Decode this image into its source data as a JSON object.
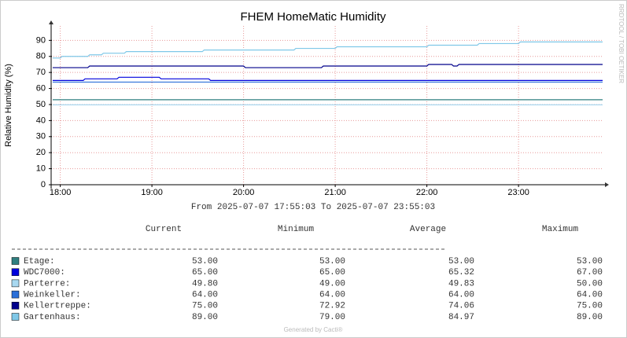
{
  "chart_data": {
    "type": "line",
    "title": "FHEM HomeMatic Humidity",
    "y_label": "Relative Humidity (%)",
    "range_label": "From 2025-07-07 17:55:03 To 2025-07-07 23:55:03",
    "xlim": [
      17.9175,
      23.9175
    ],
    "xticks": [
      {
        "value": 18,
        "label": "18:00"
      },
      {
        "value": 19,
        "label": "19:00"
      },
      {
        "value": 20,
        "label": "20:00"
      },
      {
        "value": 21,
        "label": "21:00"
      },
      {
        "value": 22,
        "label": "22:00"
      },
      {
        "value": 23,
        "label": "23:00"
      }
    ],
    "ylim": [
      0,
      99
    ],
    "yticks": [
      0,
      10,
      20,
      30,
      40,
      50,
      60,
      70,
      80,
      90
    ],
    "grid": true,
    "series": [
      {
        "name": "Etage:",
        "color": "#2f7f80",
        "x": [
          17.9175,
          23.9175
        ],
        "values": [
          53,
          53
        ]
      },
      {
        "name": "WDC7000:",
        "color": "#0000dd",
        "x": [
          17.9175,
          18.25,
          18.27,
          18.62,
          18.64,
          19.08,
          19.1,
          19.62,
          19.64,
          23.9175
        ],
        "values": [
          65,
          65,
          66,
          66,
          67,
          67,
          66,
          66,
          65,
          65
        ]
      },
      {
        "name": "Parterre:",
        "color": "#a8d8f0",
        "x": [
          17.9175,
          23.9175
        ],
        "values": [
          49.8,
          49.8
        ]
      },
      {
        "name": "Weinkeller:",
        "color": "#2b6fd8",
        "x": [
          17.9175,
          23.9175
        ],
        "values": [
          64,
          64
        ]
      },
      {
        "name": "Kellertreppe:",
        "color": "#00008b",
        "x": [
          17.9175,
          18.3,
          18.32,
          20.0,
          20.02,
          20.85,
          20.87,
          22.0,
          22.02,
          22.27,
          22.29,
          22.33,
          22.35,
          23.9175
        ],
        "values": [
          73,
          73,
          74,
          74,
          73,
          73,
          74,
          74,
          75,
          75,
          74,
          74,
          75,
          75
        ]
      },
      {
        "name": "Gartenhaus:",
        "color": "#7fc8e8",
        "x": [
          17.9175,
          18.0,
          18.02,
          18.3,
          18.32,
          18.45,
          18.47,
          18.7,
          18.72,
          19.55,
          19.57,
          20.55,
          20.57,
          21.0,
          21.02,
          22.0,
          22.02,
          22.55,
          22.57,
          23.0,
          23.02,
          23.9175
        ],
        "values": [
          79,
          79,
          80,
          80,
          81,
          81,
          82,
          82,
          83,
          83,
          84,
          84,
          85,
          85,
          86,
          86,
          87,
          87,
          88,
          88,
          89,
          89
        ]
      }
    ],
    "legend_table": {
      "columns": [
        "Current",
        "Minimum",
        "Average",
        "Maximum"
      ],
      "rows": [
        [
          "53.00",
          "53.00",
          "53.00",
          "53.00"
        ],
        [
          "65.00",
          "65.00",
          "65.32",
          "67.00"
        ],
        [
          "49.80",
          "49.00",
          "49.83",
          "50.00"
        ],
        [
          "64.00",
          "64.00",
          "64.00",
          "64.00"
        ],
        [
          "75.00",
          "72.92",
          "74.06",
          "75.00"
        ],
        [
          "89.00",
          "79.00",
          "84.97",
          "89.00"
        ]
      ]
    },
    "watermark": "RRDTOOL / TOBI OETIKER",
    "footer": "Generated by Cacti®"
  }
}
